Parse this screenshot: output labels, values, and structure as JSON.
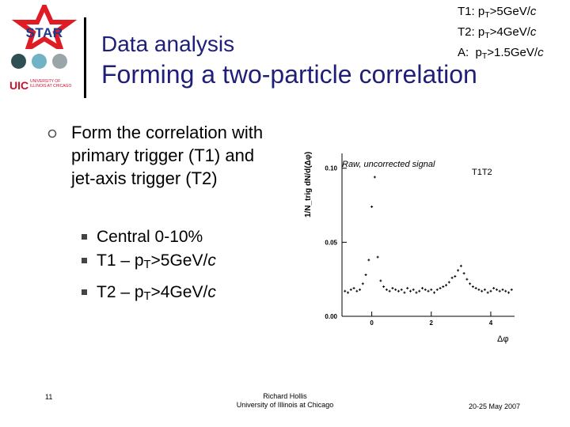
{
  "header": {
    "logo_text": "STAR",
    "uic_logo": "UIC",
    "uic_name": "UNIVERSITY OF ILLINOIS AT CHICAGO",
    "subtitle": "Data analysis",
    "title": "Forming a two-particle correlation"
  },
  "triggers": [
    {
      "prefix": "T1: p",
      "sub": "T",
      "suffix": ">5GeV/",
      "unit": "c"
    },
    {
      "prefix": "T2: p",
      "sub": "T",
      "suffix": ">4GeV/",
      "unit": "c"
    },
    {
      "prefix": "A:  p",
      "sub": "T",
      "suffix": ">1.5GeV/",
      "unit": "c"
    }
  ],
  "body": {
    "main_bullet": "Form the correlation with primary trigger (T1) and jet-axis trigger (T2)",
    "sub_bullets": [
      {
        "prefix": "Central 0-10%",
        "sub": "",
        "suffix": "",
        "unit": ""
      },
      {
        "prefix": "T1 – p",
        "sub": "T",
        "suffix": ">5GeV/",
        "unit": "c"
      },
      {
        "prefix": "T2 – p",
        "sub": "T",
        "suffix": ">4GeV/",
        "unit": "c"
      }
    ]
  },
  "footer": {
    "page_number": "11",
    "author": "Richard Hollis",
    "affiliation": "University of Illinois at Chicago",
    "date": "20-25 May 2007"
  },
  "colors": {
    "title": "#1f1f78",
    "star_red": "#e01b24",
    "dot_teal": "#6fb3c4",
    "dot_gray": "#9aa5aa",
    "dot_dark": "#2f4f55"
  },
  "chart_data": {
    "type": "scatter",
    "annotation": "Raw, uncorrected signal",
    "legend": "T1T2",
    "xlabel": "Δφ",
    "ylabel": "1/N_trig dN/d(Δφ)",
    "xlim": [
      -1.0,
      4.8
    ],
    "ylim": [
      0.0,
      0.11
    ],
    "xticks": [
      "0",
      "2",
      "4"
    ],
    "yticks": [
      "0.00",
      "0.05",
      "0.10"
    ],
    "x": [
      -0.9,
      -0.8,
      -0.7,
      -0.6,
      -0.5,
      -0.4,
      -0.3,
      -0.2,
      -0.1,
      0.0,
      0.1,
      0.2,
      0.3,
      0.4,
      0.5,
      0.6,
      0.7,
      0.8,
      0.9,
      1.0,
      1.1,
      1.2,
      1.3,
      1.4,
      1.5,
      1.6,
      1.7,
      1.8,
      1.9,
      2.0,
      2.1,
      2.2,
      2.3,
      2.4,
      2.5,
      2.6,
      2.7,
      2.8,
      2.9,
      3.0,
      3.1,
      3.2,
      3.3,
      3.4,
      3.5,
      3.6,
      3.7,
      3.8,
      3.9,
      4.0,
      4.1,
      4.2,
      4.3,
      4.4,
      4.5,
      4.6,
      4.7
    ],
    "y": [
      0.017,
      0.016,
      0.018,
      0.019,
      0.017,
      0.018,
      0.022,
      0.028,
      0.038,
      0.074,
      0.094,
      0.04,
      0.024,
      0.02,
      0.018,
      0.017,
      0.019,
      0.018,
      0.017,
      0.018,
      0.016,
      0.019,
      0.017,
      0.018,
      0.016,
      0.017,
      0.019,
      0.018,
      0.017,
      0.018,
      0.016,
      0.018,
      0.019,
      0.02,
      0.021,
      0.023,
      0.026,
      0.027,
      0.031,
      0.034,
      0.029,
      0.025,
      0.022,
      0.02,
      0.019,
      0.018,
      0.017,
      0.018,
      0.016,
      0.017,
      0.019,
      0.018,
      0.017,
      0.018,
      0.017,
      0.016,
      0.018
    ]
  }
}
